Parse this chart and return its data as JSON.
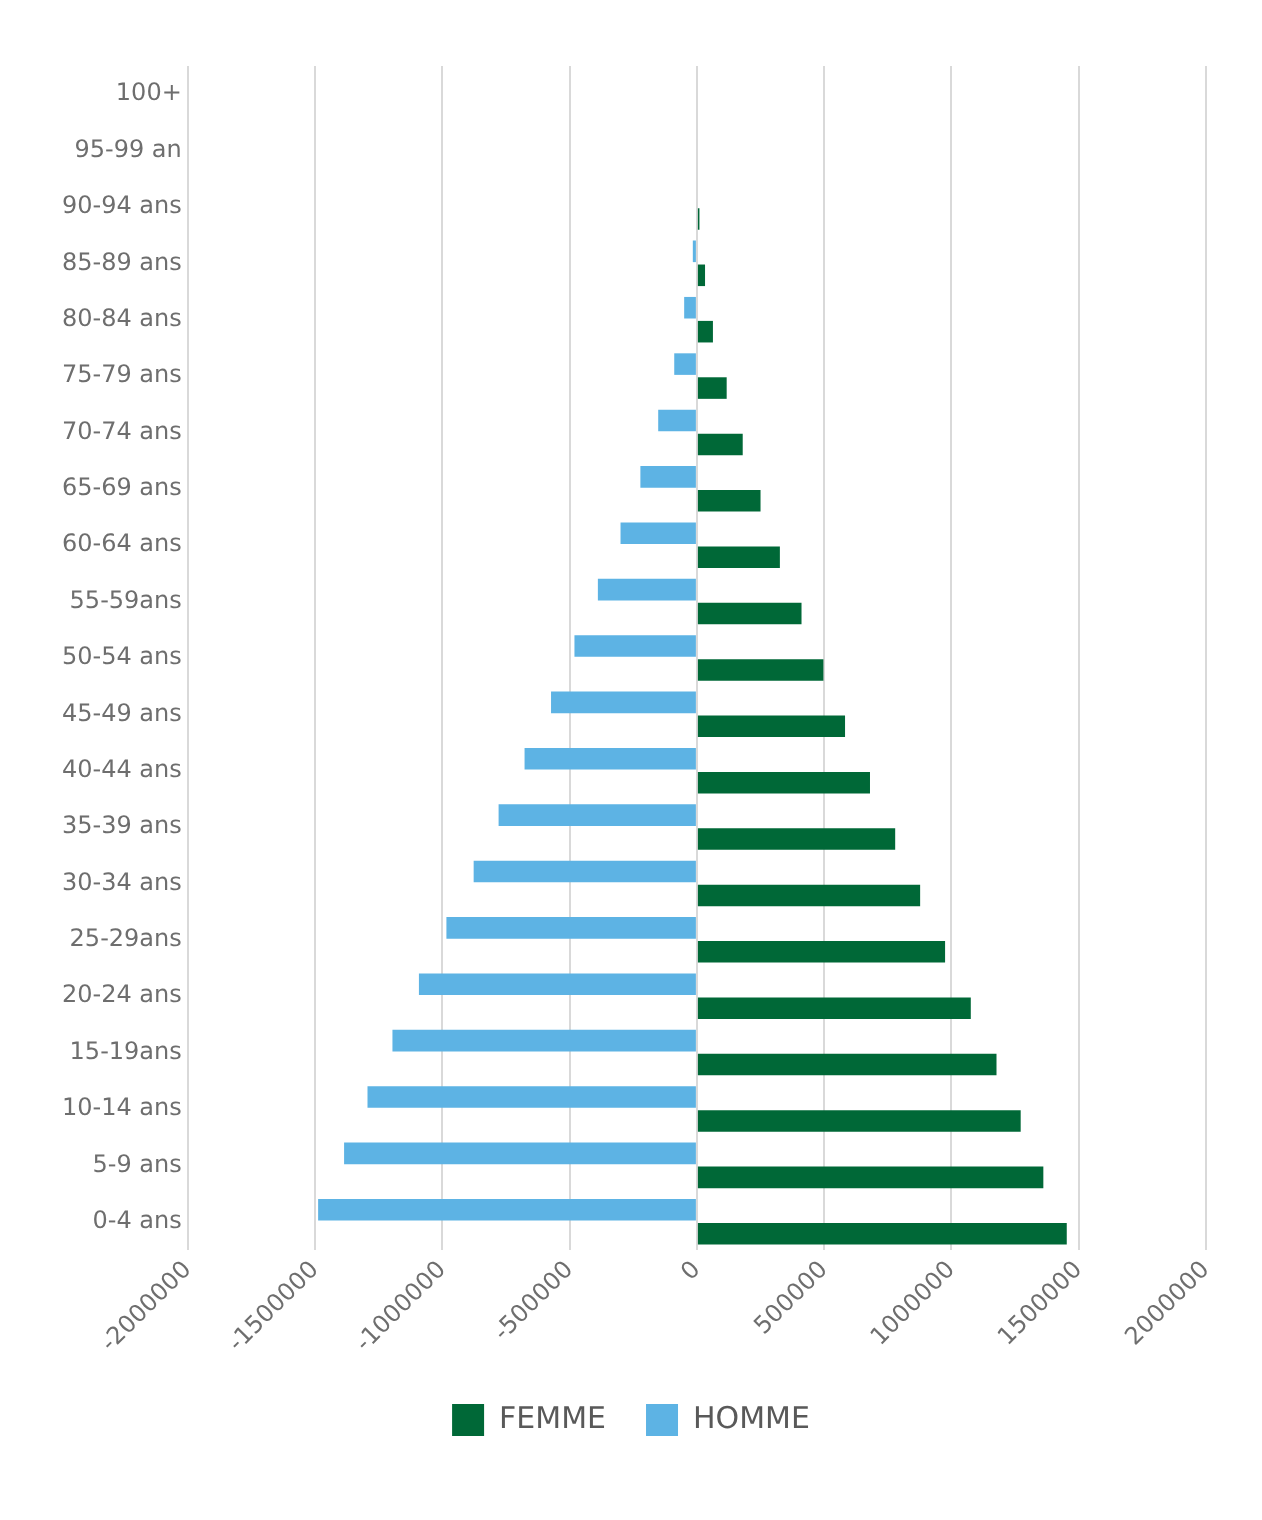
{
  "chart_data": {
    "type": "bar",
    "orientation": "horizontal",
    "categories": [
      "100+",
      "95-99 an",
      "90-94 ans",
      "85-89 ans",
      "80-84 ans",
      "75-79 ans",
      "70-74 ans",
      "65-69 ans",
      "60-64 ans",
      "55-59ans",
      "50-54 ans",
      "45-49 ans",
      "40-44 ans",
      "35-39 ans",
      "30-34 ans",
      "25-29ans",
      "20-24 ans",
      "15-19ans",
      "10-14 ans",
      "5-9 ans",
      "0-4 ans"
    ],
    "series": [
      {
        "name": "FEMME",
        "color": "#006837",
        "values": [
          0,
          null,
          10000,
          32000,
          63000,
          117000,
          180000,
          250000,
          326000,
          411000,
          497000,
          582000,
          680000,
          779000,
          877000,
          975000,
          1076000,
          1177000,
          1272000,
          1361000,
          1453000
        ]
      },
      {
        "name": "HOMME",
        "color": "#5db3e4",
        "values": [
          0,
          null,
          null,
          -16000,
          -50000,
          -89000,
          -152000,
          -222000,
          -300000,
          -389000,
          -481000,
          -573000,
          -677000,
          -779000,
          -877000,
          -984000,
          -1092000,
          -1196000,
          -1294000,
          -1386000,
          -1488000
        ]
      }
    ],
    "xlim": [
      -2000000,
      2000000
    ],
    "xticks": [
      -2000000,
      -1500000,
      -1000000,
      -500000,
      0,
      500000,
      1000000,
      1500000,
      2000000
    ],
    "grid": "x",
    "legend": "bottom"
  }
}
